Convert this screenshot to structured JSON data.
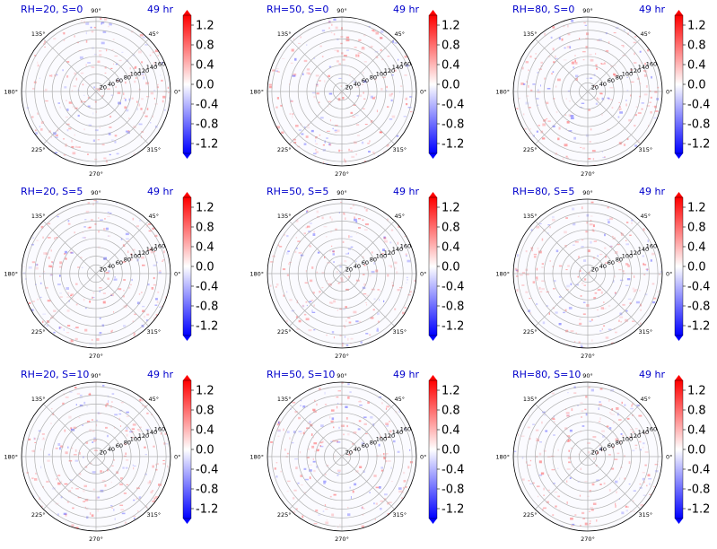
{
  "figure": {
    "colors": {
      "positive": "#ff0000",
      "negative": "#0000ff",
      "neutral": "#ffffff",
      "title": "#0000cc",
      "grid": "#b0b0b0",
      "outline": "#000000"
    },
    "colorbar": {
      "tick_labels": [
        "1.2",
        "0.8",
        "0.4",
        "0.0",
        "-0.4",
        "-0.8",
        "-1.2"
      ],
      "tick_values": [
        1.2,
        0.8,
        0.4,
        0.0,
        -0.4,
        -0.8,
        -1.2
      ],
      "range": [
        -1.4,
        1.4
      ],
      "levels": 28,
      "extend": "both",
      "colormap": "bwr"
    }
  },
  "chart_data": [
    {
      "type": "heatmap",
      "polar": true,
      "title": "RH=20, S=0",
      "time_label": "49 hr",
      "radial_ticks": [
        "20",
        "40",
        "60",
        "80",
        "100",
        "120",
        "140",
        "160"
      ],
      "radial_range": [
        0,
        170
      ],
      "angle_ticks": [
        "0°",
        "45°",
        "90°",
        "135°",
        "180°",
        "225°",
        "270°",
        "315°"
      ],
      "cbar_ticks": [
        "1.2",
        "0.8",
        "0.4",
        "0.0",
        "-0.4",
        "-0.8",
        "-1.2"
      ],
      "vmin": -1.4,
      "vmax": 1.4,
      "grid": true
    },
    {
      "type": "heatmap",
      "polar": true,
      "title": "RH=50, S=0",
      "time_label": "49 hr",
      "radial_ticks": [
        "20",
        "40",
        "60",
        "80",
        "100",
        "120",
        "140",
        "160"
      ],
      "radial_range": [
        0,
        170
      ],
      "angle_ticks": [
        "0°",
        "45°",
        "90°",
        "135°",
        "180°",
        "225°",
        "270°",
        "315°"
      ],
      "cbar_ticks": [
        "1.2",
        "0.8",
        "0.4",
        "0.0",
        "-0.4",
        "-0.8",
        "-1.2"
      ],
      "vmin": -1.4,
      "vmax": 1.4,
      "grid": true
    },
    {
      "type": "heatmap",
      "polar": true,
      "title": "RH=80, S=0",
      "time_label": "49 hr",
      "radial_ticks": [
        "20",
        "40",
        "60",
        "80",
        "100",
        "120",
        "140",
        "160"
      ],
      "radial_range": [
        0,
        170
      ],
      "angle_ticks": [
        "0°",
        "45°",
        "90°",
        "135°",
        "180°",
        "225°",
        "270°",
        "315°"
      ],
      "cbar_ticks": [
        "1.2",
        "0.8",
        "0.4",
        "0.0",
        "-0.4",
        "-0.8",
        "-1.2"
      ],
      "vmin": -1.4,
      "vmax": 1.4,
      "grid": true
    },
    {
      "type": "heatmap",
      "polar": true,
      "title": "RH=20, S=5",
      "time_label": "49 hr",
      "radial_ticks": [
        "20",
        "40",
        "60",
        "80",
        "100",
        "120",
        "140",
        "160"
      ],
      "radial_range": [
        0,
        170
      ],
      "angle_ticks": [
        "0°",
        "45°",
        "90°",
        "135°",
        "180°",
        "225°",
        "270°",
        "315°"
      ],
      "cbar_ticks": [
        "1.2",
        "0.8",
        "0.4",
        "0.0",
        "-0.4",
        "-0.8",
        "-1.2"
      ],
      "vmin": -1.4,
      "vmax": 1.4,
      "grid": true
    },
    {
      "type": "heatmap",
      "polar": true,
      "title": "RH=50, S=5",
      "time_label": "49 hr",
      "radial_ticks": [
        "20",
        "40",
        "60",
        "80",
        "100",
        "120",
        "140",
        "160"
      ],
      "radial_range": [
        0,
        170
      ],
      "angle_ticks": [
        "0°",
        "45°",
        "90°",
        "135°",
        "180°",
        "225°",
        "270°",
        "315°"
      ],
      "cbar_ticks": [
        "1.2",
        "0.8",
        "0.4",
        "0.0",
        "-0.4",
        "-0.8",
        "-1.2"
      ],
      "vmin": -1.4,
      "vmax": 1.4,
      "grid": true
    },
    {
      "type": "heatmap",
      "polar": true,
      "title": "RH=80, S=5",
      "time_label": "49 hr",
      "radial_ticks": [
        "20",
        "40",
        "60",
        "80",
        "100",
        "120",
        "140",
        "160"
      ],
      "radial_range": [
        0,
        170
      ],
      "angle_ticks": [
        "0°",
        "45°",
        "90°",
        "135°",
        "180°",
        "225°",
        "270°",
        "315°"
      ],
      "cbar_ticks": [
        "1.2",
        "0.8",
        "0.4",
        "0.0",
        "-0.4",
        "-0.8",
        "-1.2"
      ],
      "vmin": -1.4,
      "vmax": 1.4,
      "grid": true
    },
    {
      "type": "heatmap",
      "polar": true,
      "title": "RH=20, S=10",
      "time_label": "49 hr",
      "radial_ticks": [
        "20",
        "40",
        "60",
        "80",
        "100",
        "120",
        "140",
        "160"
      ],
      "radial_range": [
        0,
        170
      ],
      "angle_ticks": [
        "0°",
        "45°",
        "90°",
        "135°",
        "180°",
        "225°",
        "270°",
        "315°"
      ],
      "cbar_ticks": [
        "1.2",
        "0.8",
        "0.4",
        "0.0",
        "-0.4",
        "-0.8",
        "-1.2"
      ],
      "vmin": -1.4,
      "vmax": 1.4,
      "grid": true
    },
    {
      "type": "heatmap",
      "polar": true,
      "title": "RH=50, S=10",
      "time_label": "49 hr",
      "radial_ticks": [
        "20",
        "40",
        "60",
        "80",
        "100",
        "120",
        "140",
        "160"
      ],
      "radial_range": [
        0,
        170
      ],
      "angle_ticks": [
        "0°",
        "45°",
        "90°",
        "135°",
        "180°",
        "225°",
        "270°",
        "315°"
      ],
      "cbar_ticks": [
        "1.2",
        "0.8",
        "0.4",
        "0.0",
        "-0.4",
        "-0.8",
        "-1.2"
      ],
      "vmin": -1.4,
      "vmax": 1.4,
      "grid": true
    },
    {
      "type": "heatmap",
      "polar": true,
      "title": "RH=80, S=10",
      "time_label": "49 hr",
      "radial_ticks": [
        "20",
        "40",
        "60",
        "80",
        "100",
        "120",
        "140",
        "160"
      ],
      "radial_range": [
        0,
        170
      ],
      "angle_ticks": [
        "0°",
        "45°",
        "90°",
        "135°",
        "180°",
        "225°",
        "270°",
        "315°"
      ],
      "cbar_ticks": [
        "1.2",
        "0.8",
        "0.4",
        "0.0",
        "-0.4",
        "-0.8",
        "-1.2"
      ],
      "vmin": -1.4,
      "vmax": 1.4,
      "grid": true
    }
  ]
}
